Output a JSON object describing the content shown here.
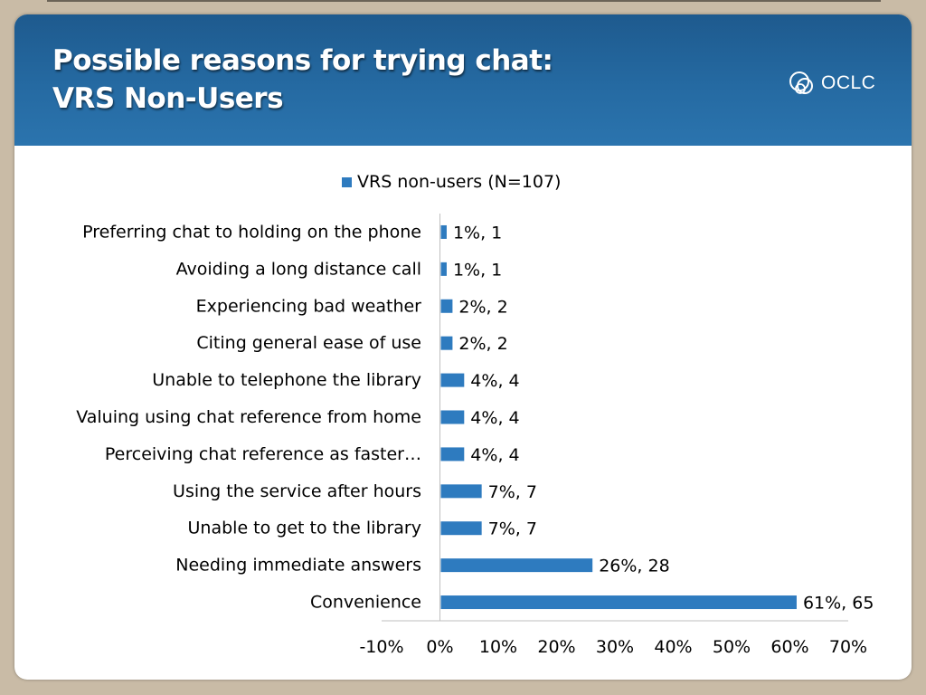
{
  "slide": {
    "title_line1": "Possible reasons for trying chat:",
    "title_line2": "VRS Non-Users",
    "logo_text": "OCLC"
  },
  "colors": {
    "header": "#2368a0",
    "bar": "#2e7bbf",
    "frame": "#c9bba6"
  },
  "chart_data": {
    "type": "bar",
    "orientation": "horizontal",
    "categories": [
      "Preferring chat to holding on the phone",
      "Avoiding a long distance call",
      "Experiencing bad weather",
      "Citing general ease of use",
      "Unable to telephone the library",
      "Valuing using chat reference from home",
      "Perceiving chat reference as faster…",
      "Using the service after hours",
      "Unable to get to the library",
      "Needing immediate answers",
      "Convenience"
    ],
    "series": [
      {
        "name": "VRS non-users (N=107)",
        "values": [
          1,
          1,
          2,
          2,
          4,
          4,
          4,
          7,
          7,
          26,
          61
        ],
        "data_labels": [
          "1%, 1",
          "1%, 1",
          "2%, 2",
          "2%, 2",
          "4%, 4",
          "4%, 4",
          "4%, 4",
          "7%, 7",
          "7%, 7",
          "26%, 28",
          "61%, 65"
        ]
      }
    ],
    "xlim": [
      -10,
      70
    ],
    "xticks": [
      -10,
      0,
      10,
      20,
      30,
      40,
      50,
      60,
      70
    ],
    "xtick_labels": [
      "-10%",
      "0%",
      "10%",
      "20%",
      "30%",
      "40%",
      "50%",
      "60%",
      "70%"
    ],
    "legend_position": "top",
    "grid": false
  }
}
